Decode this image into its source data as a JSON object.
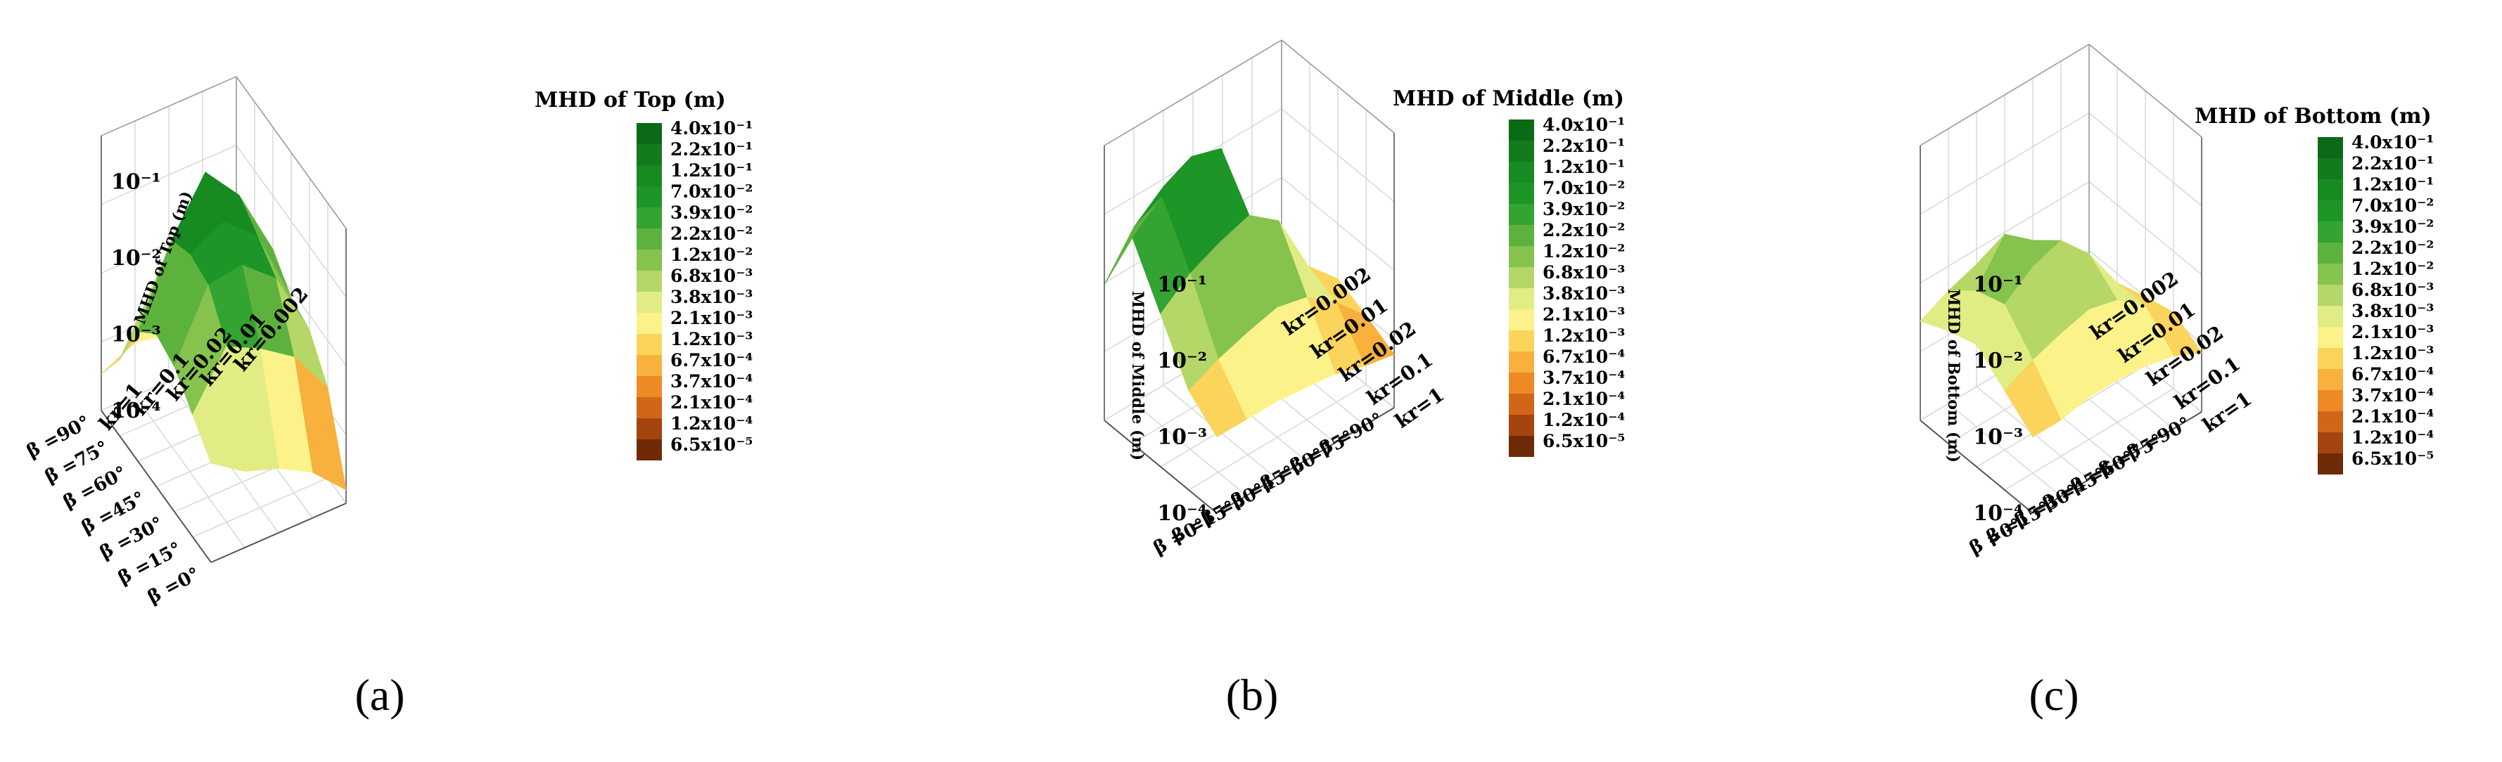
{
  "chart_data": [
    {
      "type": "surface3d",
      "panel_label": "(a)",
      "colorbar_title": "MHD of Top (m)",
      "zlabel": "MHD of Top (m)",
      "x_ticks": [
        "β =0°",
        "β =15°",
        "β =30°",
        "β =45°",
        "β =60°",
        "β =75°",
        "β =90°"
      ],
      "y_ticks": [
        "kr=1",
        "kr=0.1",
        "kr=0.02",
        "kr=0.01",
        "kr=0.002"
      ],
      "z_ticks": [
        "10⁻⁴",
        "10⁻³",
        "10⁻²",
        "10⁻¹"
      ],
      "z_scale": "log",
      "zlim": [
        0.0001,
        0.4
      ],
      "z_values": [
        [
          0.002,
          0.001,
          0.0007,
          0.0004,
          0.00015
        ],
        [
          0.004,
          0.02,
          0.012,
          0.006,
          0.0015
        ],
        [
          0.008,
          0.06,
          0.07,
          0.03,
          0.004
        ],
        [
          0.01,
          0.07,
          0.12,
          0.05,
          0.005
        ],
        [
          0.005,
          0.05,
          0.25,
          0.08,
          0.01
        ],
        [
          0.001,
          0.006,
          0.01,
          0.004,
          0.0006
        ],
        [
          0.0003,
          0.0005,
          0.0004,
          0.0002,
          7e-05
        ]
      ]
    },
    {
      "type": "surface3d",
      "panel_label": "(b)",
      "colorbar_title": "MHD of Middle (m)",
      "zlabel": "MHD of Middle (m)",
      "x_ticks": [
        "β =0°",
        "β =15°",
        "β =30°",
        "β =45°",
        "β =60°",
        "β =75°",
        "β =90°"
      ],
      "y_ticks": [
        "kr=1",
        "kr=0.1",
        "kr=0.02",
        "kr=0.01",
        "kr=0.002"
      ],
      "z_ticks": [
        "10⁻⁴",
        "10⁻³",
        "10⁻²",
        "10⁻¹"
      ],
      "z_scale": "log",
      "zlim": [
        0.0001,
        0.4
      ],
      "z_values": [
        [
          0.001,
          0.002,
          0.01,
          0.05,
          0.006
        ],
        [
          0.001,
          0.003,
          0.02,
          0.1,
          0.02
        ],
        [
          0.001,
          0.004,
          0.03,
          0.2,
          0.04
        ],
        [
          0.0009,
          0.005,
          0.04,
          0.15,
          0.005
        ],
        [
          0.0008,
          0.004,
          0.02,
          0.01,
          0.0015
        ],
        [
          0.0006,
          0.002,
          0.003,
          0.001,
          0.0006
        ],
        [
          0.0005,
          0.0008,
          0.0012,
          0.0008,
          0.0003
        ]
      ]
    },
    {
      "type": "surface3d",
      "panel_label": "(c)",
      "colorbar_title": "MHD of Bottom (m)",
      "zlabel": "MHD of Bottom (m)",
      "x_ticks": [
        "β =0°",
        "β =15°",
        "β =30°",
        "β =45°",
        "β =60°",
        "β =75°",
        "β =90°"
      ],
      "y_ticks": [
        "kr=1",
        "kr=0.1",
        "kr=0.02",
        "kr=0.01",
        "kr=0.002"
      ],
      "z_ticks": [
        "10⁻⁴",
        "10⁻³",
        "10⁻²",
        "10⁻¹"
      ],
      "z_scale": "log",
      "zlim": [
        0.0001,
        0.4
      ],
      "z_values": [
        [
          0.001,
          0.002,
          0.004,
          0.003,
          0.002
        ],
        [
          0.001,
          0.003,
          0.008,
          0.006,
          0.003
        ],
        [
          0.0012,
          0.004,
          0.015,
          0.02,
          0.004
        ],
        [
          0.0012,
          0.005,
          0.02,
          0.01,
          0.003
        ],
        [
          0.0011,
          0.004,
          0.008,
          0.004,
          0.0015
        ],
        [
          0.0009,
          0.002,
          0.002,
          0.0015,
          0.0007
        ],
        [
          0.0006,
          0.001,
          0.0008,
          0.0006,
          0.0004
        ]
      ]
    }
  ],
  "colorbar": {
    "labels": [
      "4.0x10⁻¹",
      "2.2x10⁻¹",
      "1.2x10⁻¹",
      "7.0x10⁻²",
      "3.9x10⁻²",
      "2.2x10⁻²",
      "1.2x10⁻²",
      "6.8x10⁻³",
      "3.8x10⁻³",
      "2.1x10⁻³",
      "1.2x10⁻³",
      "6.7x10⁻⁴",
      "3.7x10⁻⁴",
      "2.1x10⁻⁴",
      "1.2x10⁻⁴",
      "6.5x10⁻⁵"
    ],
    "colors": [
      "#0b6a17",
      "#137a1d",
      "#178a21",
      "#1d9527",
      "#33a331",
      "#5db23e",
      "#86c24e",
      "#b5d767",
      "#e1ec84",
      "#fbf28a",
      "#fbd45b",
      "#f7b13c",
      "#ee8a24",
      "#d26618",
      "#a4440f",
      "#6e2a07"
    ]
  }
}
